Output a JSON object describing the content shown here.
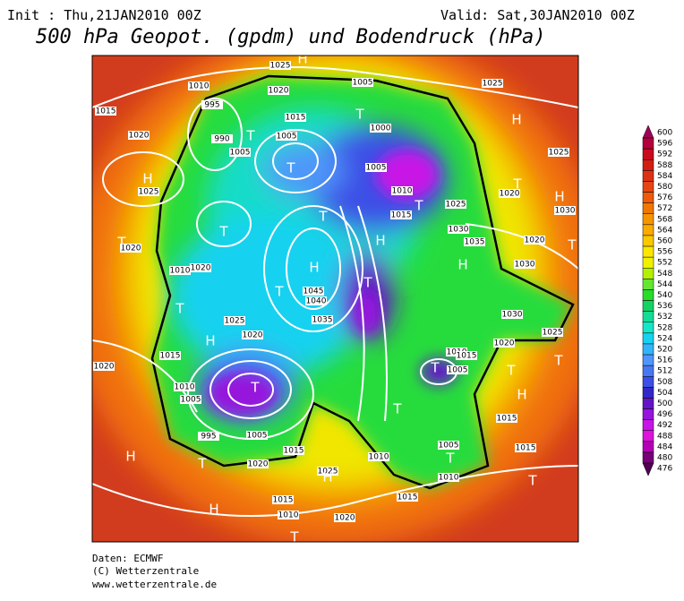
{
  "header": {
    "init": "Init : Thu,21JAN2010 00Z",
    "valid": "Valid: Sat,30JAN2010 00Z",
    "title": "500 hPa Geopot. (gpdm) und Bodendruck (hPa)"
  },
  "colorbar": {
    "labels": [
      600,
      596,
      592,
      588,
      584,
      580,
      576,
      572,
      568,
      564,
      560,
      556,
      552,
      548,
      544,
      540,
      536,
      532,
      528,
      524,
      520,
      516,
      512,
      508,
      504,
      500,
      496,
      492,
      488,
      484,
      480,
      476
    ],
    "colors": [
      "#a0005a",
      "#b4003c",
      "#c80a1e",
      "#d21e14",
      "#dc3214",
      "#e64614",
      "#f05a0a",
      "#f07800",
      "#f59600",
      "#faaa00",
      "#fac800",
      "#fae600",
      "#f0f000",
      "#b4f000",
      "#64e632",
      "#28dc28",
      "#14d264",
      "#14dc96",
      "#14e6c8",
      "#14d2f0",
      "#32b4fa",
      "#5096fa",
      "#4678f0",
      "#3c50e6",
      "#3228c8",
      "#6414c8",
      "#9614dc",
      "#c814e6",
      "#dc14dc",
      "#b400b4",
      "#780078",
      "#500050"
    ]
  },
  "map": {
    "highs_lows": [
      "H",
      "T",
      "H",
      "T",
      "T",
      "H",
      "T",
      "T",
      "T",
      "T",
      "H",
      "H",
      "H",
      "T",
      "T",
      "T",
      "H",
      "T",
      "T",
      "T",
      "H",
      "T",
      "H",
      "H",
      "T",
      "T",
      "T",
      "H",
      "T",
      "H",
      "T",
      "T",
      "T"
    ],
    "pressure_labels": [
      1025,
      1010,
      1020,
      1005,
      1015,
      995,
      1015,
      1020,
      1025,
      990,
      1005,
      1005,
      1000,
      1005,
      1010,
      1025,
      1030,
      1035,
      1025,
      1025,
      1020,
      1030,
      1020,
      1030,
      1020,
      1010,
      1020,
      1045,
      1040,
      1035,
      1025,
      1020,
      1015,
      1020,
      1010,
      1005,
      995,
      1005,
      1020,
      1015,
      1025,
      1015,
      1010,
      1020,
      1010,
      1005,
      1015,
      1020,
      1015,
      1005,
      1010,
      1015,
      1015,
      1025,
      1030,
      1010,
      1015
    ]
  },
  "footer": {
    "source": "Daten: ECMWF",
    "copyright": "(C) Wetterzentrale",
    "url": "www.wetterzentrale.de"
  }
}
